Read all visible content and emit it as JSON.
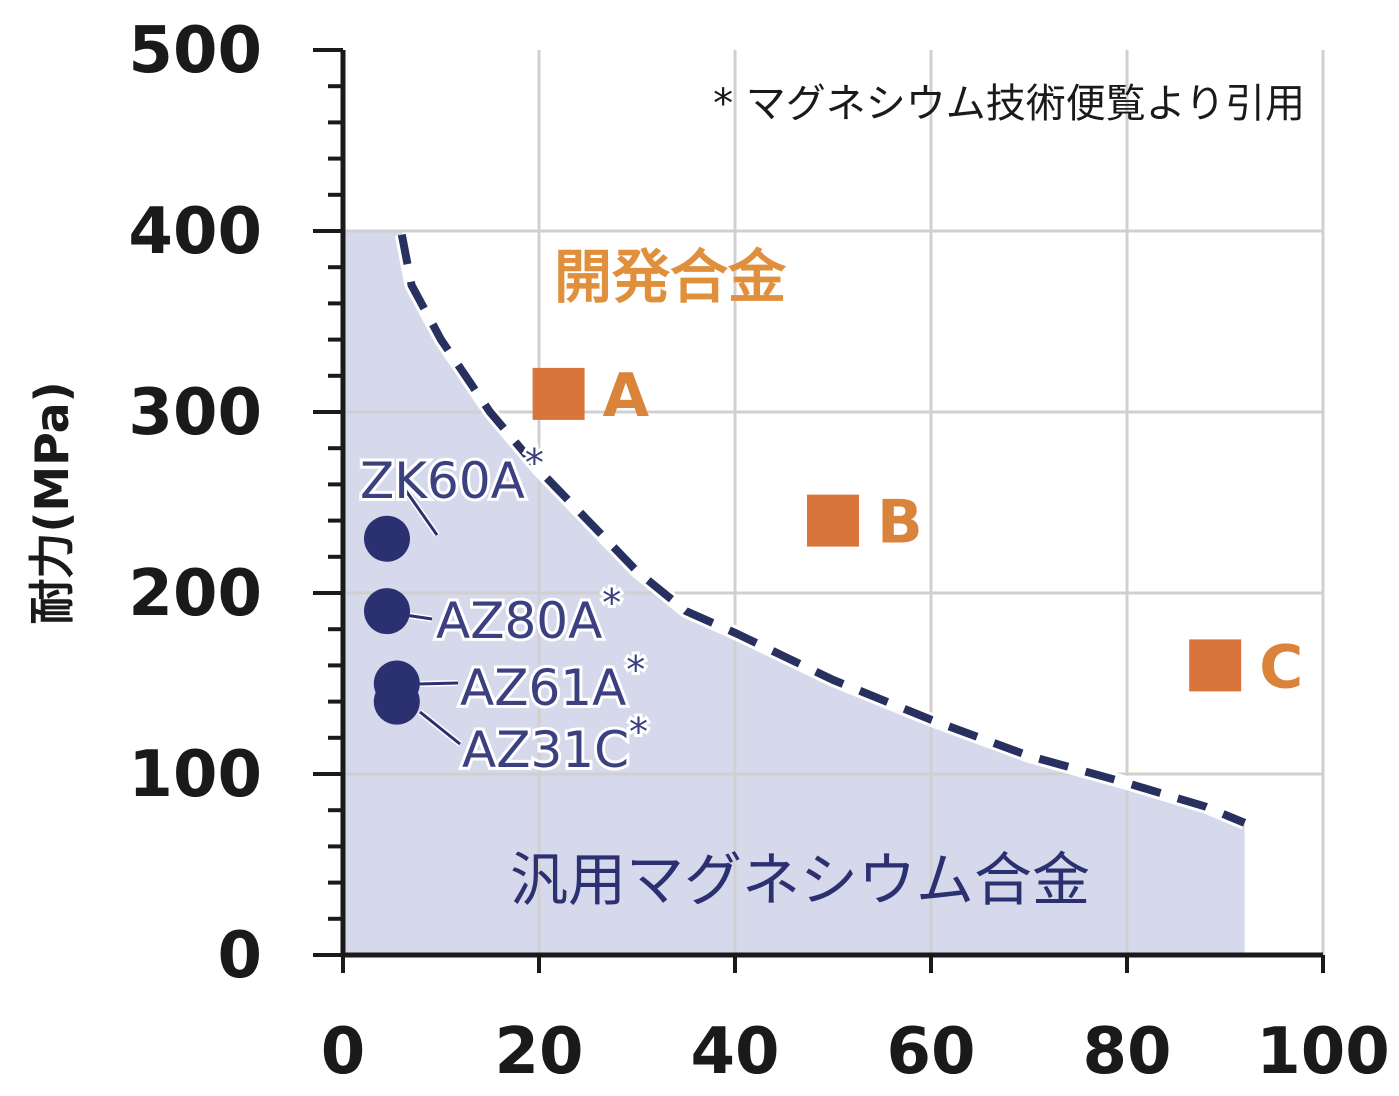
{
  "chart_data": {
    "type": "scatter",
    "ylabel": "耐力(MPa)",
    "xlabel": "",
    "xlim": [
      0,
      100
    ],
    "ylim": [
      0,
      500
    ],
    "x_ticks": [
      "0",
      "20",
      "40",
      "60",
      "80",
      "100"
    ],
    "y_ticks": [
      "0",
      "100",
      "200",
      "300",
      "400",
      "500"
    ],
    "grid": true,
    "annotation": "* マグネシウム技術便覧より引用",
    "regions": {
      "developed_label": "開発合金",
      "general_label": "汎用マグネシウム合金"
    },
    "boundary_curve": {
      "x": [
        6,
        7,
        10,
        15,
        20,
        25,
        30,
        35,
        40,
        50,
        60,
        70,
        80,
        88,
        92
      ],
      "y": [
        398,
        370,
        340,
        300,
        268,
        240,
        212,
        190,
        178,
        152,
        130,
        110,
        95,
        82,
        73
      ]
    },
    "series": [
      {
        "name": "汎用マグネシウム合金",
        "color": "#2b3170",
        "points": [
          {
            "label": "ZK60A",
            "marker": "*",
            "x": 5,
            "y": 230
          },
          {
            "label": "AZ80A",
            "marker": "*",
            "x": 5,
            "y": 190
          },
          {
            "label": "AZ61A",
            "marker": "*",
            "x": 6,
            "y": 150
          },
          {
            "label": "AZ31C",
            "marker": "*",
            "x": 6,
            "y": 140
          }
        ]
      },
      {
        "name": "開発合金",
        "color": "#d9743a",
        "points": [
          {
            "label": "A",
            "x": 22,
            "y": 310
          },
          {
            "label": "B",
            "x": 50,
            "y": 240
          },
          {
            "label": "C",
            "x": 89,
            "y": 160
          }
        ]
      }
    ],
    "colors": {
      "shade": "#d6d8ec",
      "curve": "#27305f",
      "grid": "#d0d0d0",
      "axis": "#1a1a1a",
      "region_label_dev": "#e0903c",
      "region_label_gen": "#2b3170",
      "point_label_blue": "#3a4080",
      "point_label_orange": "#d9843a"
    }
  }
}
